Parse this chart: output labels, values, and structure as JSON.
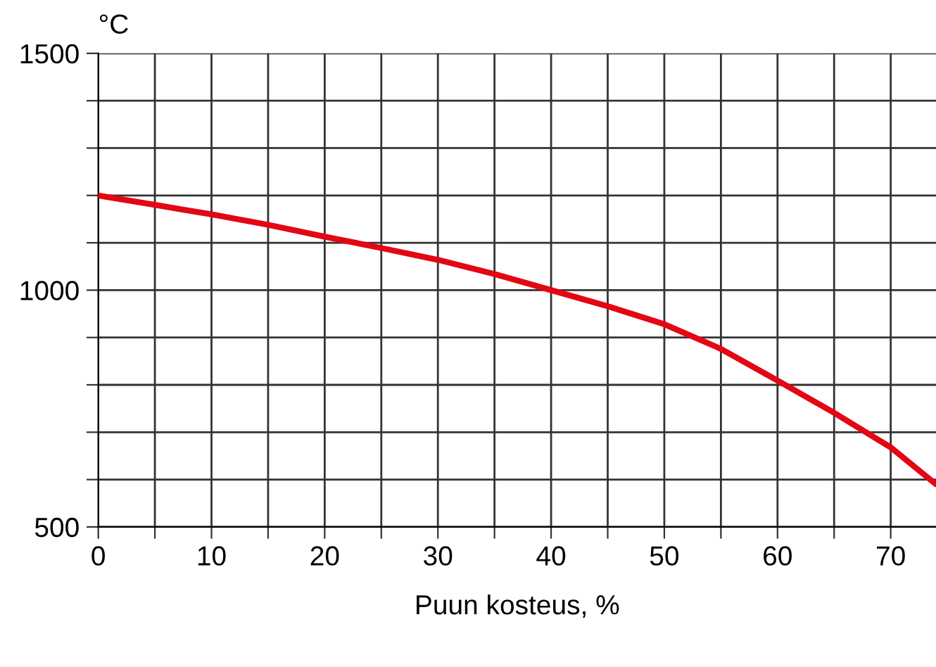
{
  "chart_data": {
    "type": "line",
    "xlabel": "Puun kosteus, %",
    "ylabel": "°C",
    "x": [
      0,
      5,
      10,
      15,
      20,
      25,
      30,
      35,
      40,
      45,
      50,
      55,
      60,
      65,
      70,
      74
    ],
    "series": [
      {
        "color": "#e30613",
        "values": [
          1200,
          1180,
          1160,
          1138,
          1113,
          1089,
          1064,
          1034,
          1000,
          966,
          928,
          876,
          809,
          741,
          668,
          590
        ]
      }
    ],
    "xlim": [
      0,
      74
    ],
    "ylim": [
      500,
      1500
    ],
    "xticks": [
      0,
      {
        "value": 5,
        "label": null
      },
      10,
      {
        "value": 15,
        "label": null
      },
      20,
      {
        "value": 25,
        "label": null
      },
      30,
      {
        "value": 35,
        "label": null
      },
      40,
      {
        "value": 45,
        "label": null
      },
      50,
      {
        "value": 55,
        "label": null
      },
      60,
      {
        "value": 65,
        "label": null
      },
      70
    ],
    "yticks": [
      500,
      {
        "value": 600,
        "label": null
      },
      {
        "value": 700,
        "label": null
      },
      {
        "value": 800,
        "label": null
      },
      {
        "value": 900,
        "label": null
      },
      1000,
      {
        "value": 1100,
        "label": null
      },
      {
        "value": 1200,
        "label": null
      },
      {
        "value": 1300,
        "label": null
      },
      {
        "value": 1400,
        "label": null
      },
      1500
    ],
    "grid": true,
    "marker": "none",
    "line_style": "solid"
  }
}
